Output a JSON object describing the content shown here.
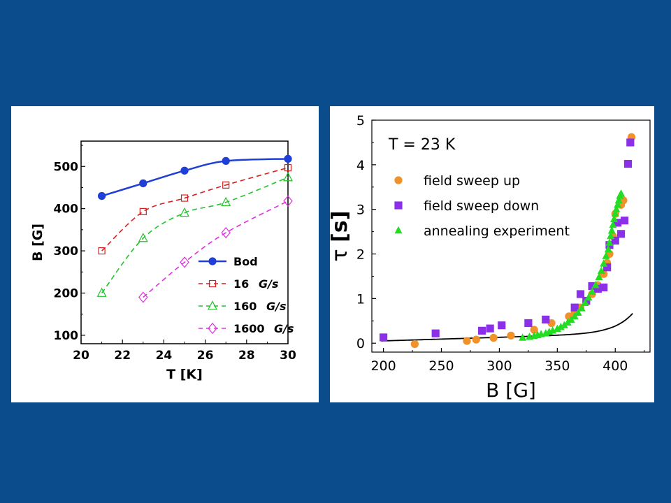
{
  "slide": {
    "background": "#0b4c8c"
  },
  "chart_data": [
    {
      "type": "line",
      "title": "",
      "xlabel": "T [K]",
      "ylabel": "B [G]",
      "xlim": [
        20,
        30
      ],
      "ylim": [
        80,
        560
      ],
      "xticks": [
        20,
        22,
        24,
        26,
        28,
        30
      ],
      "yticks": [
        100,
        200,
        300,
        400,
        500
      ],
      "legend_placement": "lower-right",
      "series": [
        {
          "name": "Bod",
          "marker": "filled-circle",
          "line": "solid",
          "color": "#1f3fd6",
          "x": [
            21,
            23,
            25,
            27,
            30
          ],
          "y": [
            430,
            460,
            490,
            513,
            518
          ]
        },
        {
          "name": "16",
          "unit": "G/s",
          "marker": "square",
          "line": "dashed",
          "color": "#d62020",
          "x": [
            21,
            23,
            25,
            27,
            30
          ],
          "y": [
            300,
            393,
            425,
            456,
            497
          ]
        },
        {
          "name": "160",
          "unit": "G/s",
          "marker": "triangle",
          "line": "dashed",
          "color": "#22c22a",
          "x": [
            21,
            23,
            25,
            27,
            30
          ],
          "y": [
            200,
            330,
            390,
            415,
            474
          ]
        },
        {
          "name": "1600",
          "unit": "G/s",
          "marker": "diamond",
          "line": "dashed",
          "color": "#e030e0",
          "x": [
            23,
            25,
            27,
            30
          ],
          "y": [
            190,
            273,
            343,
            418
          ]
        }
      ]
    },
    {
      "type": "scatter",
      "title": "",
      "annotation": "T = 23 K",
      "xlabel": "B [G]",
      "ylabel_symbol": "τ",
      "ylabel_unit": "[s]",
      "xlim": [
        190,
        430
      ],
      "ylim": [
        -0.2,
        5
      ],
      "xticks": [
        200,
        250,
        300,
        350,
        400
      ],
      "yticks": [
        0,
        1,
        2,
        3,
        4,
        5
      ],
      "legend_placement": "top-left",
      "series": [
        {
          "name": "field sweep up",
          "marker": "circle",
          "color": "#f0922a",
          "x": [
            227,
            272,
            280,
            295,
            310,
            330,
            345,
            360,
            365,
            370,
            375,
            380,
            385,
            390,
            393,
            395,
            398,
            400,
            405,
            407,
            414
          ],
          "y": [
            -0.02,
            0.05,
            0.08,
            0.12,
            0.17,
            0.3,
            0.45,
            0.6,
            0.7,
            0.8,
            0.95,
            1.1,
            1.3,
            1.55,
            1.8,
            2.0,
            2.4,
            2.9,
            3.1,
            3.2,
            4.62
          ]
        },
        {
          "name": "field sweep down",
          "marker": "square",
          "color": "#8b30e8",
          "x": [
            200,
            245,
            285,
            292,
            302,
            325,
            340,
            365,
            370,
            375,
            380,
            385,
            390,
            393,
            395,
            400,
            402,
            405,
            408,
            411,
            413
          ],
          "y": [
            0.13,
            0.22,
            0.28,
            0.33,
            0.4,
            0.45,
            0.53,
            0.8,
            1.1,
            0.95,
            1.28,
            1.22,
            1.25,
            1.7,
            2.2,
            2.3,
            2.7,
            2.45,
            2.75,
            4.02,
            4.5
          ]
        },
        {
          "name": "annealing experiment",
          "marker": "triangle",
          "color": "#22dd22",
          "x": [
            320,
            326,
            330,
            333,
            336,
            340,
            343,
            346,
            350,
            353,
            356,
            359,
            362,
            365,
            368,
            371,
            374,
            377,
            380,
            383,
            386,
            388,
            390,
            392,
            394,
            395,
            396,
            397,
            398,
            399,
            400,
            401,
            402,
            403,
            404,
            405
          ],
          "y": [
            0.12,
            0.14,
            0.16,
            0.18,
            0.2,
            0.22,
            0.25,
            0.28,
            0.32,
            0.36,
            0.4,
            0.46,
            0.52,
            0.6,
            0.68,
            0.78,
            0.9,
            1.02,
            1.15,
            1.3,
            1.48,
            1.62,
            1.78,
            1.95,
            2.1,
            2.25,
            2.4,
            2.52,
            2.65,
            2.78,
            2.9,
            3.0,
            3.1,
            3.2,
            3.3,
            3.35
          ]
        }
      ],
      "fit_curve": {
        "line": "solid",
        "color": "#000000",
        "x_start": 198,
        "x_end": 415,
        "a": 0.05,
        "b": 0.0017,
        "c": 5e-05,
        "k": 0.0627
      }
    }
  ]
}
